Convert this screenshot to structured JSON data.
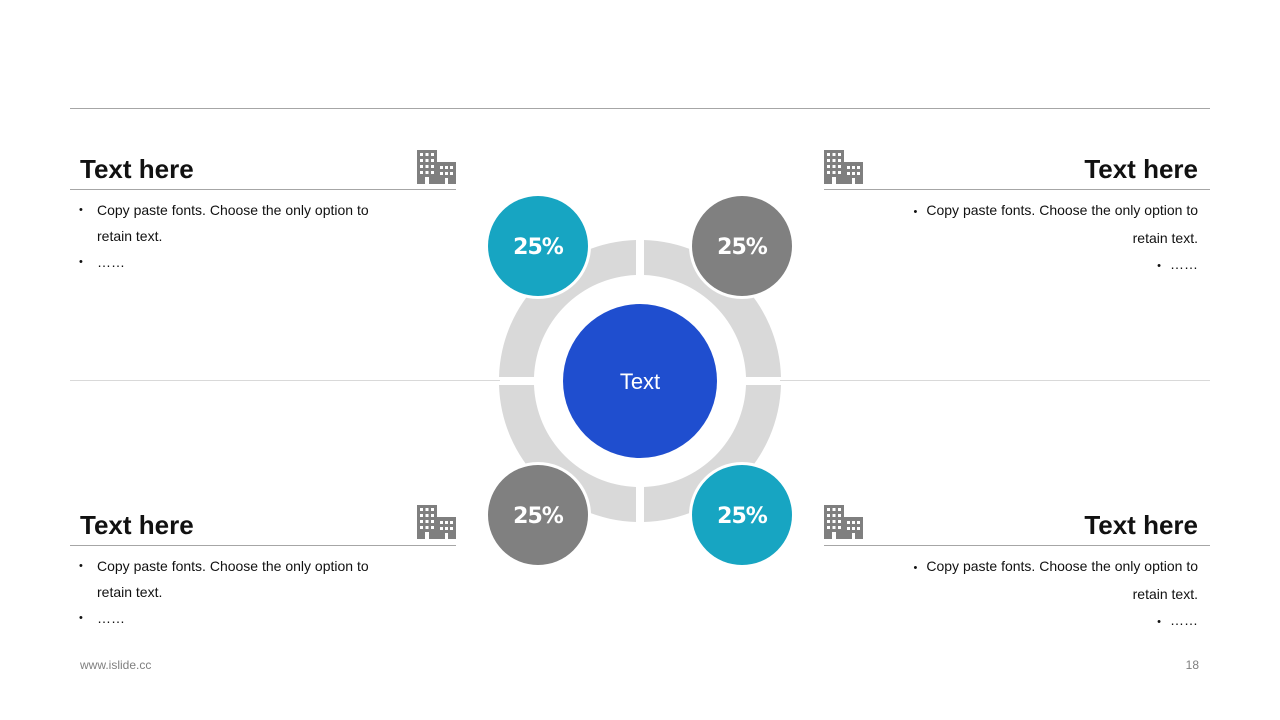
{
  "panels": [
    {
      "title": "Text here",
      "bullets": [
        "Copy paste fonts. Choose the only option to retain text.",
        "……"
      ]
    },
    {
      "title": "Text here",
      "bullets": [
        "Copy paste fonts. Choose the only option to retain text.",
        "……"
      ]
    },
    {
      "title": "Text here",
      "bullets": [
        "Copy paste fonts. Choose the only option to retain text.",
        "……"
      ]
    },
    {
      "title": "Text here",
      "bullets": [
        "Copy paste fonts. Choose the only option to retain text.",
        "……"
      ]
    }
  ],
  "diagram": {
    "center_label": "Text",
    "segments": [
      {
        "label": "25%",
        "color": "#17a5c2"
      },
      {
        "label": "25%",
        "color": "#808080"
      },
      {
        "label": "25%",
        "color": "#808080"
      },
      {
        "label": "25%",
        "color": "#17a5c2"
      }
    ],
    "center_color": "#1f4ecf",
    "ring_color": "#d9d9d9"
  },
  "icons": {
    "panel_icon": "building-icon"
  },
  "footer": {
    "url": "www.islide.cc",
    "page_number": "18"
  }
}
